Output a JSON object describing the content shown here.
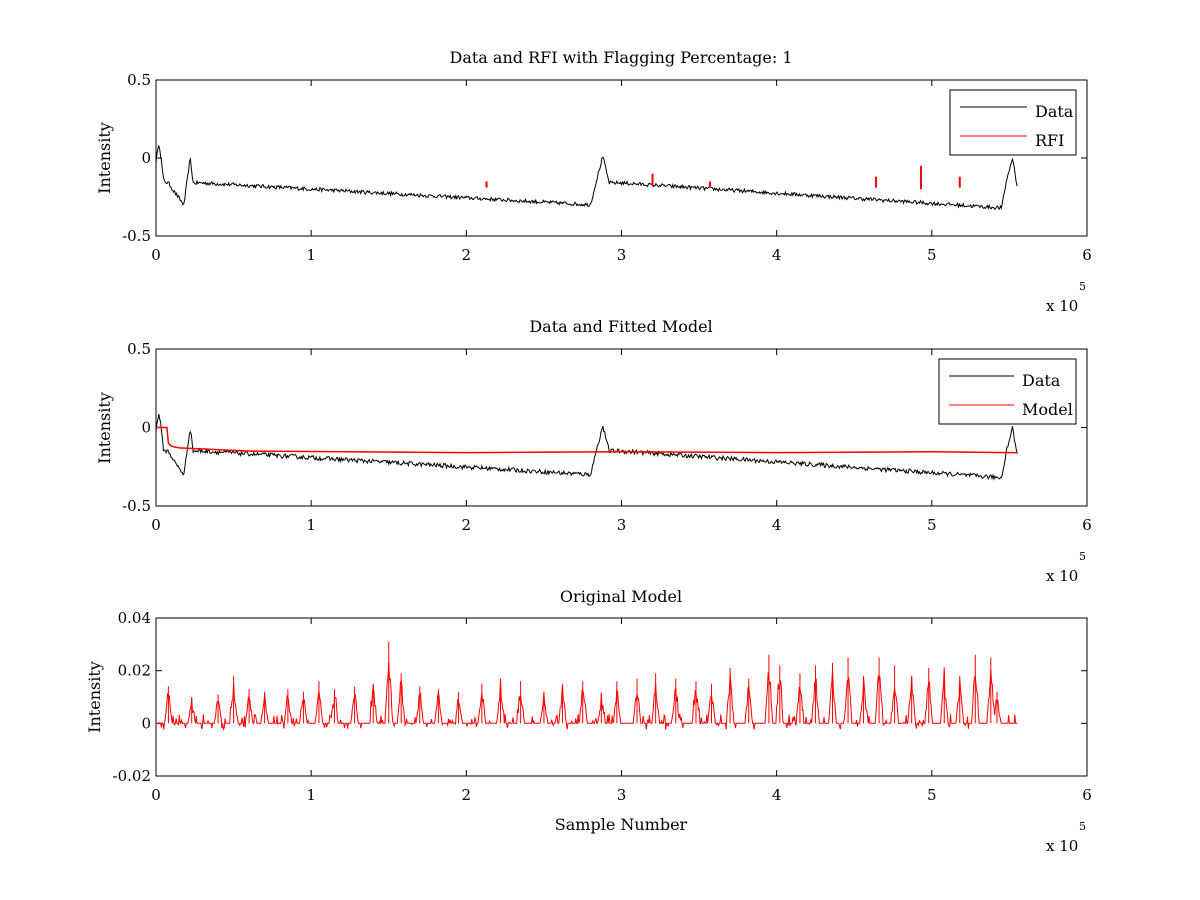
{
  "chart_data": [
    {
      "type": "line",
      "title": "Data and RFI with Flagging Percentage: 1",
      "xlabel": "",
      "ylabel": "Intensity",
      "xlim": [
        0,
        600000
      ],
      "ylim": [
        -0.5,
        0.5
      ],
      "xticks": [
        "0",
        "1",
        "2",
        "3",
        "4",
        "5",
        "6"
      ],
      "yticks": [
        "-0.5",
        "0",
        "0.5"
      ],
      "x_multiplier": {
        "base": "x 10",
        "exponent": "5"
      },
      "legend_position": "top-right",
      "legend": [
        {
          "label": "Data",
          "color": "#000000"
        },
        {
          "label": "RFI",
          "color": "#ff0000"
        }
      ],
      "series": [
        {
          "name": "Data",
          "color": "#000000",
          "baseline": -0.16,
          "noise": 0.012,
          "x": [
            0,
            2000,
            5000,
            8000,
            12000,
            18000,
            22000,
            24000,
            30000,
            280000,
            285000,
            288000,
            292000,
            300000,
            545000,
            548000,
            552000,
            555000
          ],
          "y": [
            -0.02,
            0.1,
            -0.15,
            -0.16,
            -0.22,
            -0.3,
            0.0,
            -0.16,
            -0.16,
            -0.3,
            -0.1,
            0.01,
            -0.16,
            -0.16,
            -0.32,
            -0.15,
            0.0,
            -0.18
          ]
        },
        {
          "name": "RFI",
          "color": "#ff0000",
          "spikes": [
            {
              "x": 213000,
              "lo": -0.19,
              "hi": -0.15
            },
            {
              "x": 320000,
              "lo": -0.18,
              "hi": -0.1
            },
            {
              "x": 357000,
              "lo": -0.19,
              "hi": -0.15
            },
            {
              "x": 464000,
              "lo": -0.19,
              "hi": -0.12
            },
            {
              "x": 493000,
              "lo": -0.2,
              "hi": -0.05
            },
            {
              "x": 518000,
              "lo": -0.19,
              "hi": -0.12
            }
          ]
        }
      ]
    },
    {
      "type": "line",
      "title": "Data and Fitted Model",
      "xlabel": "",
      "ylabel": "Intensity",
      "xlim": [
        0,
        600000
      ],
      "ylim": [
        -0.5,
        0.5
      ],
      "xticks": [
        "0",
        "1",
        "2",
        "3",
        "4",
        "5",
        "6"
      ],
      "yticks": [
        "-0.5",
        "0",
        "0.5"
      ],
      "x_multiplier": {
        "base": "x 10",
        "exponent": "5"
      },
      "legend_position": "top-right",
      "legend": [
        {
          "label": "Data",
          "color": "#000000"
        },
        {
          "label": "Model",
          "color": "#ff0000"
        }
      ],
      "series": [
        {
          "name": "Data",
          "color": "#000000",
          "baseline": -0.15,
          "noise": 0.014,
          "x": [
            0,
            2000,
            5000,
            8000,
            12000,
            18000,
            22000,
            24000,
            30000,
            280000,
            285000,
            288000,
            292000,
            300000,
            545000,
            548000,
            552000,
            555000
          ],
          "y": [
            -0.02,
            0.1,
            -0.15,
            -0.15,
            -0.22,
            -0.3,
            0.0,
            -0.15,
            -0.15,
            -0.3,
            -0.1,
            0.01,
            -0.15,
            -0.15,
            -0.32,
            -0.15,
            0.0,
            -0.18
          ]
        },
        {
          "name": "Model",
          "color": "#ff0000",
          "x": [
            0,
            7000,
            8000,
            10000,
            15000,
            60000,
            200000,
            300000,
            400000,
            500000,
            550000,
            555000
          ],
          "y": [
            0.0,
            0.0,
            -0.1,
            -0.12,
            -0.13,
            -0.15,
            -0.16,
            -0.155,
            -0.16,
            -0.155,
            -0.16,
            -0.16
          ]
        }
      ]
    },
    {
      "type": "line",
      "title": "Original Model",
      "xlabel": "Sample Number",
      "ylabel": "Intensity",
      "xlim": [
        0,
        600000
      ],
      "ylim": [
        -0.02,
        0.04
      ],
      "xticks": [
        "0",
        "1",
        "2",
        "3",
        "4",
        "5",
        "6"
      ],
      "yticks": [
        "-0.02",
        "0",
        "0.02",
        "0.04"
      ],
      "x_multiplier": {
        "base": "x 10",
        "exponent": "5"
      },
      "series": [
        {
          "name": "",
          "color": "#ff0000",
          "baseline": 0,
          "xrange": [
            0,
            555000
          ],
          "peaks": [
            {
              "x": 8000,
              "h": 0.014
            },
            {
              "x": 23000,
              "h": 0.01
            },
            {
              "x": 40000,
              "h": 0.011
            },
            {
              "x": 50000,
              "h": 0.018
            },
            {
              "x": 60000,
              "h": 0.013
            },
            {
              "x": 70000,
              "h": 0.012
            },
            {
              "x": 85000,
              "h": 0.013
            },
            {
              "x": 95000,
              "h": 0.012
            },
            {
              "x": 105000,
              "h": 0.016
            },
            {
              "x": 115000,
              "h": 0.013
            },
            {
              "x": 128000,
              "h": 0.014
            },
            {
              "x": 140000,
              "h": 0.015
            },
            {
              "x": 150000,
              "h": 0.031
            },
            {
              "x": 158000,
              "h": 0.019
            },
            {
              "x": 170000,
              "h": 0.014
            },
            {
              "x": 182000,
              "h": 0.013
            },
            {
              "x": 195000,
              "h": 0.012
            },
            {
              "x": 210000,
              "h": 0.015
            },
            {
              "x": 222000,
              "h": 0.014
            },
            {
              "x": 235000,
              "h": 0.016
            },
            {
              "x": 250000,
              "h": 0.012
            },
            {
              "x": 262000,
              "h": 0.015
            },
            {
              "x": 275000,
              "h": 0.016
            },
            {
              "x": 287000,
              "h": 0.01
            },
            {
              "x": 297000,
              "h": 0.016
            },
            {
              "x": 310000,
              "h": 0.017
            },
            {
              "x": 322000,
              "h": 0.019
            },
            {
              "x": 335000,
              "h": 0.017
            },
            {
              "x": 348000,
              "h": 0.016
            },
            {
              "x": 358000,
              "h": 0.015
            },
            {
              "x": 370000,
              "h": 0.021
            },
            {
              "x": 382000,
              "h": 0.017
            },
            {
              "x": 395000,
              "h": 0.026
            },
            {
              "x": 402000,
              "h": 0.022
            },
            {
              "x": 415000,
              "h": 0.019
            },
            {
              "x": 425000,
              "h": 0.022
            },
            {
              "x": 436000,
              "h": 0.023
            },
            {
              "x": 446000,
              "h": 0.025
            },
            {
              "x": 456000,
              "h": 0.018
            },
            {
              "x": 466000,
              "h": 0.025
            },
            {
              "x": 476000,
              "h": 0.022
            },
            {
              "x": 487000,
              "h": 0.018
            },
            {
              "x": 498000,
              "h": 0.021
            },
            {
              "x": 508000,
              "h": 0.02
            },
            {
              "x": 518000,
              "h": 0.018
            },
            {
              "x": 528000,
              "h": 0.026
            },
            {
              "x": 538000,
              "h": 0.025
            },
            {
              "x": 542000,
              "h": 0.012
            }
          ]
        }
      ]
    }
  ]
}
